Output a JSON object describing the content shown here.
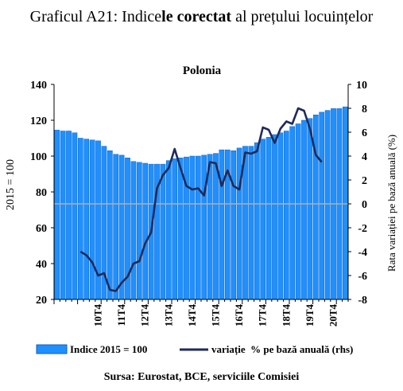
{
  "page": {
    "title_prefix": "Graficul A21: Indice",
    "title_bold": "le corectat",
    "title_suffix": " al prețului locuințelor",
    "source": "Sursa: Eurostat, BCE, serviciile  Comisiei"
  },
  "chart_data": {
    "type": "bar+line",
    "title": "Polonia",
    "ylabel_left": "2015 = 100",
    "ylabel_right": "Rata variației  pe bază anuală  (%)",
    "ylim_left": [
      20,
      140
    ],
    "ylim_right": [
      -8,
      10
    ],
    "yticks_left": [
      "140",
      "120",
      "100",
      "80",
      "60",
      "40",
      "20"
    ],
    "yticks_right": [
      "10",
      "8",
      "6",
      "4",
      "2",
      "0",
      "-2",
      "-4",
      "-6",
      "-8"
    ],
    "xtick_labels": [
      "10T4",
      "11T4",
      "12T4",
      "13T4",
      "14T4",
      "15T4",
      "16T4",
      "17T4",
      "18T4",
      "19T4",
      "20T4"
    ],
    "colors": {
      "bars": "#1E90FF",
      "bar_edge": "#1060C0",
      "line": "#1F2A5A",
      "zero_line": "#B0B0B0"
    },
    "series": [
      {
        "name": "Indice 2015 = 100",
        "type": "bar",
        "values": [
          114.5,
          114,
          114,
          113,
          110,
          109.5,
          109,
          108.5,
          105.5,
          103,
          101,
          100.5,
          99,
          97,
          96.5,
          96,
          95.5,
          95.5,
          95.5,
          97.5,
          98.5,
          99,
          99.5,
          100,
          100,
          100.5,
          101,
          101.5,
          103.5,
          103.5,
          103,
          104.5,
          105.5,
          105.5,
          107.5,
          109.5,
          110.5,
          112,
          113,
          114,
          116.5,
          118,
          120,
          121,
          123,
          124.5,
          125.5,
          126.5,
          126.5,
          127.5
        ]
      },
      {
        "name": "variație  % pe bază anuală (rhs)",
        "type": "line",
        "start_index": 4,
        "values": [
          -4,
          -4.3,
          -4.9,
          -6,
          -5.8,
          -7.2,
          -7.3,
          -6.6,
          -6.1,
          -5,
          -4.8,
          -3.3,
          -2.4,
          1.3,
          2.4,
          3,
          4.6,
          3,
          1.5,
          1.2,
          1.3,
          0.7,
          3.5,
          3.4,
          1.5,
          2.8,
          1.5,
          1.2,
          4.3,
          4.2,
          4.4,
          6.4,
          6.2,
          5.1,
          6.3,
          6.9,
          6.7,
          8,
          7.8,
          6.3,
          4.1,
          3.5
        ]
      }
    ],
    "legend": {
      "placement": "bottom"
    }
  }
}
